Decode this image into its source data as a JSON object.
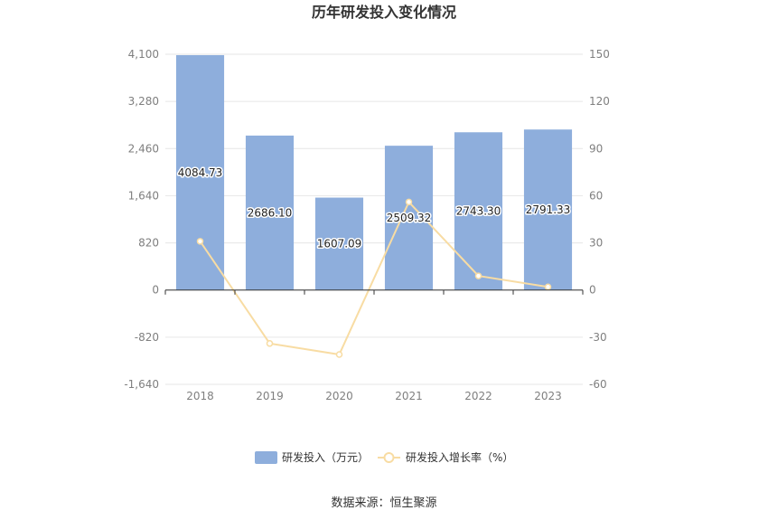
{
  "chart_data": {
    "type": "bar",
    "title": "历年研发投入变化情况",
    "categories": [
      "2018",
      "2019",
      "2020",
      "2021",
      "2022",
      "2023"
    ],
    "series": [
      {
        "name": "研发投入（万元）",
        "type": "bar",
        "axis": "left",
        "color": "#8eaedc",
        "values": [
          4084.73,
          2686.1,
          1607.09,
          2509.32,
          2743.3,
          2791.33
        ],
        "labels": [
          "4084.73",
          "2686.10",
          "1607.09",
          "2509.32",
          "2743.30",
          "2791.33"
        ]
      },
      {
        "name": "研发投入增长率（%）",
        "type": "line",
        "axis": "right",
        "color": "#f8dca3",
        "values": [
          31,
          -34,
          -41,
          56,
          9,
          2
        ]
      }
    ],
    "y_left": {
      "ticks": [
        "4,100",
        "3,280",
        "2,460",
        "1,640",
        "820",
        "0",
        "-820",
        "-1,640"
      ],
      "range": [
        -1640,
        4100
      ]
    },
    "y_right": {
      "ticks": [
        "150",
        "120",
        "90",
        "60",
        "30",
        "0",
        "-30",
        "-60"
      ],
      "range": [
        -60,
        150
      ]
    },
    "grid": true,
    "legend_position": "bottom",
    "source": "数据来源：恒生聚源"
  }
}
